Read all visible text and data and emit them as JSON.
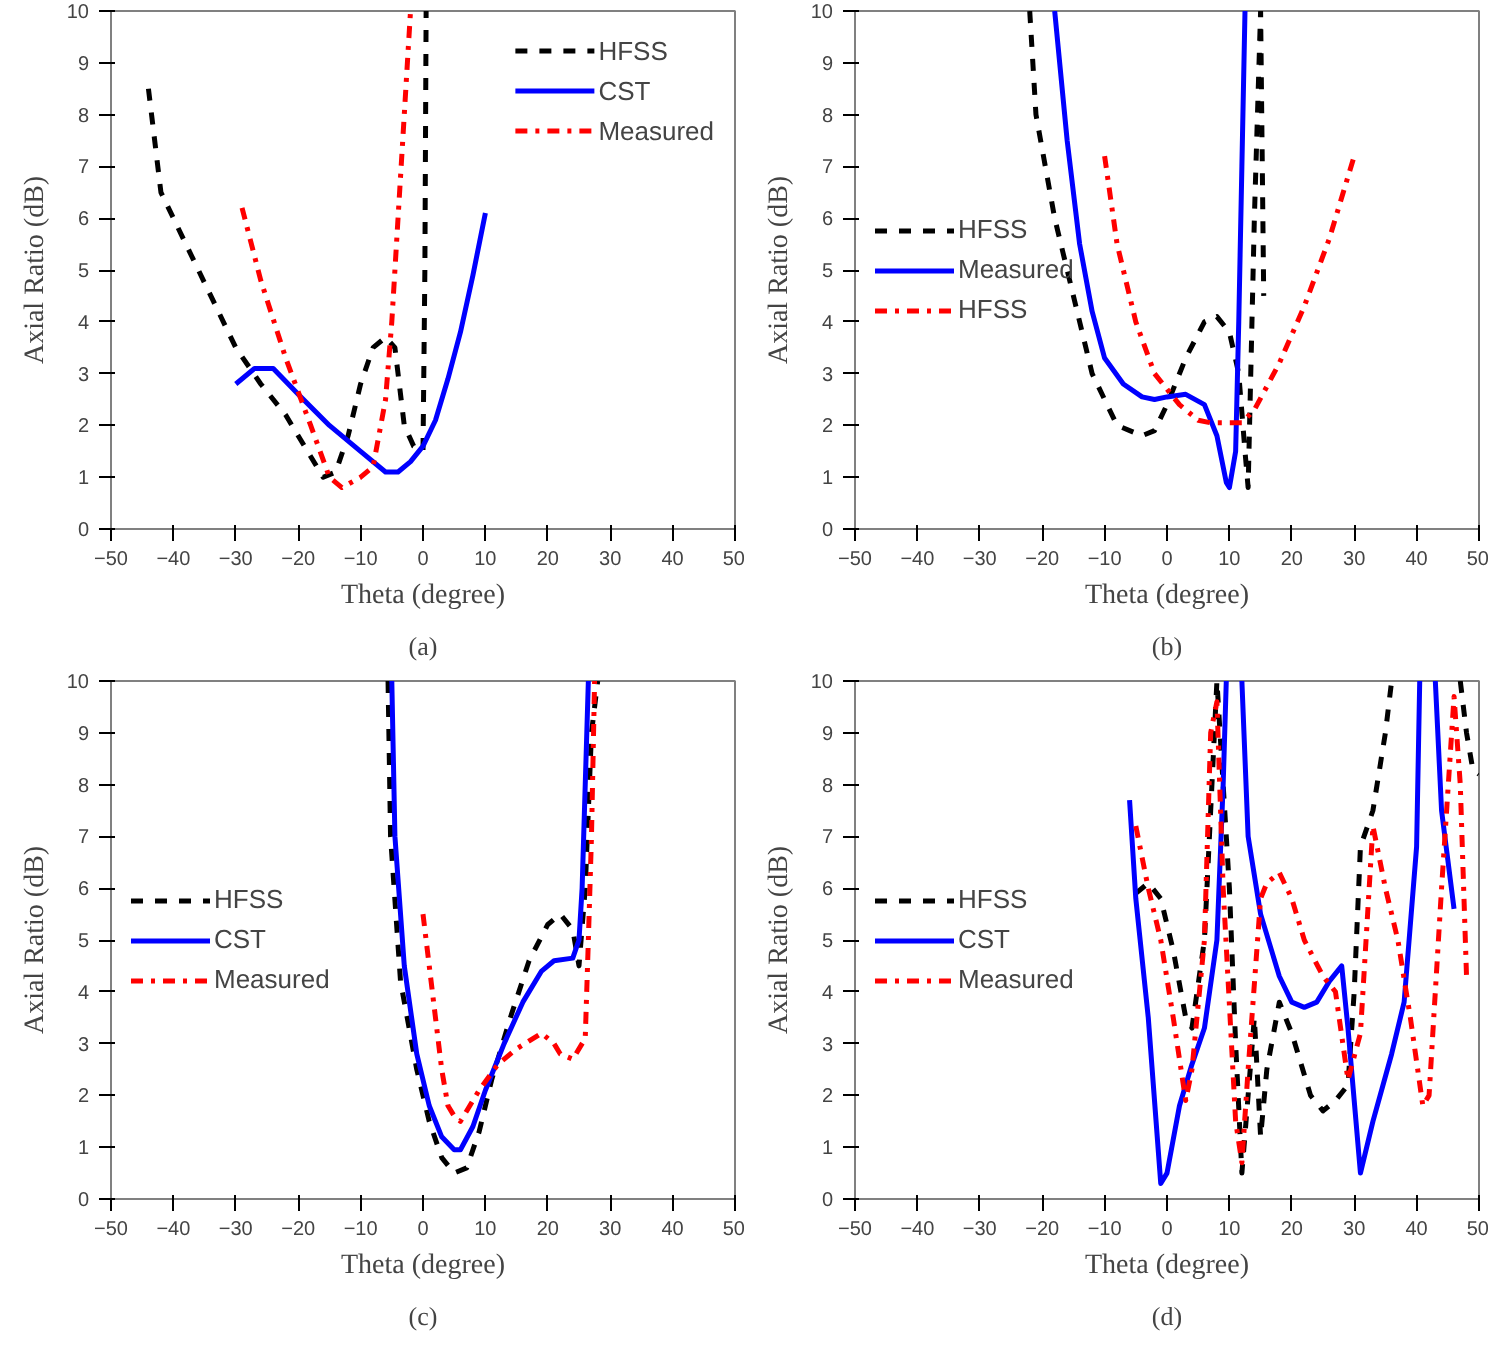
{
  "chart_data": [
    {
      "type": "line",
      "title": "(a)",
      "xlabel": "Theta (degree)",
      "ylabel": "Axial Ratio (dB)",
      "xlim": [
        -50,
        50
      ],
      "ylim": [
        0,
        10
      ],
      "xticks": [
        -50,
        -40,
        -30,
        -20,
        -10,
        0,
        10,
        20,
        30,
        40,
        50
      ],
      "yticks": [
        0,
        1,
        2,
        3,
        4,
        5,
        6,
        7,
        8,
        9,
        10
      ],
      "grid": false,
      "legend": "top right",
      "series": [
        {
          "name": "HFSS",
          "color": "#000000",
          "line_style": "dashed",
          "x": [
            -44,
            -42,
            -38,
            -34,
            -30,
            -26,
            -22,
            -18,
            -16,
            -14,
            -12,
            -10,
            -8,
            -6,
            -4.5,
            -3,
            -1.5,
            0,
            0.3,
            0.5
          ],
          "values": [
            8.5,
            6.5,
            5.5,
            4.5,
            3.5,
            2.8,
            2.2,
            1.4,
            1.0,
            1.1,
            1.8,
            2.8,
            3.5,
            3.7,
            3.5,
            2.0,
            1.6,
            1.5,
            5,
            10
          ]
        },
        {
          "name": "CST",
          "color": "#0000ff",
          "line_style": "solid",
          "x": [
            -30,
            -27,
            -24,
            -20,
            -15,
            -10,
            -6,
            -4,
            -2,
            0,
            2,
            4,
            6,
            8,
            10
          ],
          "values": [
            2.8,
            3.1,
            3.1,
            2.6,
            2.0,
            1.5,
            1.1,
            1.1,
            1.3,
            1.6,
            2.1,
            2.9,
            3.8,
            4.9,
            6.1
          ]
        },
        {
          "name": "Measured",
          "color": "#ff0000",
          "line_style": "dashdot",
          "x": [
            -29,
            -26,
            -22,
            -18,
            -15,
            -13,
            -10,
            -8,
            -6,
            -5,
            -4,
            -3,
            -2
          ],
          "values": [
            6.2,
            4.8,
            3.3,
            2.0,
            1.0,
            0.8,
            1.0,
            1.2,
            2.5,
            4.0,
            6.0,
            8.0,
            10
          ]
        }
      ]
    },
    {
      "type": "line",
      "title": "(b)",
      "xlabel": "Theta (degree)",
      "ylabel": "Axial Ratio (dB)",
      "xlim": [
        -50,
        50
      ],
      "ylim": [
        0,
        10
      ],
      "xticks": [
        -50,
        -40,
        -30,
        -20,
        -10,
        0,
        10,
        20,
        30,
        40,
        50
      ],
      "yticks": [
        0,
        1,
        2,
        3,
        4,
        5,
        6,
        7,
        8,
        9,
        10
      ],
      "grid": false,
      "legend": "left",
      "series": [
        {
          "name": "HFSS",
          "color": "#000000",
          "line_style": "dashed",
          "x": [
            -22,
            -21,
            -18,
            -15,
            -12,
            -8,
            -4,
            -2,
            0,
            3,
            6,
            8,
            10,
            11.5,
            12.5,
            13,
            14,
            15,
            15.5
          ],
          "values": [
            10,
            8,
            6,
            4.5,
            3.0,
            2.0,
            1.8,
            1.9,
            2.4,
            3.3,
            4.0,
            4.1,
            3.8,
            3.0,
            1.5,
            0.8,
            6,
            10,
            4.5
          ]
        },
        {
          "name": "Measured",
          "color": "#0000ff",
          "line_style": "solid",
          "x": [
            -18,
            -16,
            -14,
            -12,
            -10,
            -7,
            -4,
            -2,
            0,
            3,
            6,
            8,
            9.5,
            10,
            11,
            11.5,
            12,
            12.5
          ],
          "values": [
            10,
            7.5,
            5.5,
            4.2,
            3.3,
            2.8,
            2.55,
            2.5,
            2.55,
            2.6,
            2.4,
            1.8,
            0.9,
            0.8,
            1.5,
            4,
            7,
            10
          ]
        },
        {
          "name": "HFSS",
          "color": "#ff0000",
          "line_style": "dashdot",
          "x": [
            -10,
            -8,
            -5,
            -2,
            2,
            5,
            7,
            12,
            14,
            18,
            22,
            26,
            30
          ],
          "values": [
            7.2,
            5.5,
            4.0,
            3.0,
            2.4,
            2.1,
            2.05,
            2.05,
            2.3,
            3.2,
            4.3,
            5.6,
            7.2
          ]
        }
      ]
    },
    {
      "type": "line",
      "title": "(c)",
      "xlabel": "Theta (degree)",
      "ylabel": "Axial Ratio (dB)",
      "xlim": [
        -50,
        50
      ],
      "ylim": [
        0,
        10
      ],
      "xticks": [
        -50,
        -40,
        -30,
        -20,
        -10,
        0,
        10,
        20,
        30,
        40,
        50
      ],
      "yticks": [
        0,
        1,
        2,
        3,
        4,
        5,
        6,
        7,
        8,
        9,
        10
      ],
      "grid": false,
      "legend": "left",
      "series": [
        {
          "name": "HFSS",
          "color": "#000000",
          "line_style": "dashed",
          "x": [
            -5.6,
            -5.2,
            -3.6,
            -1,
            1,
            3,
            5,
            7,
            9,
            11,
            14,
            17,
            20,
            22,
            24,
            25,
            26,
            27,
            28
          ],
          "values": [
            10,
            7,
            4.2,
            2.5,
            1.5,
            0.8,
            0.5,
            0.6,
            1.3,
            2.3,
            3.5,
            4.6,
            5.3,
            5.5,
            5.2,
            4.5,
            6,
            9,
            10
          ]
        },
        {
          "name": "CST",
          "color": "#0000ff",
          "line_style": "solid",
          "x": [
            -5,
            -4.5,
            -3,
            -1,
            1,
            3,
            5,
            6,
            8,
            10,
            13,
            16,
            19,
            21,
            24,
            25,
            25.5,
            26,
            26.5
          ],
          "values": [
            10,
            7,
            4.5,
            2.8,
            1.8,
            1.2,
            0.95,
            0.95,
            1.4,
            2.1,
            3.0,
            3.8,
            4.4,
            4.6,
            4.65,
            5.0,
            6,
            8,
            10
          ]
        },
        {
          "name": "Measured",
          "color": "#ff0000",
          "line_style": "dashdot",
          "x": [
            0,
            1,
            2,
            3,
            4,
            5,
            6,
            7,
            9,
            12,
            15,
            19,
            21,
            22,
            24,
            26,
            26.5,
            27,
            27.5
          ],
          "values": [
            5.5,
            4.5,
            3.5,
            2.5,
            1.8,
            1.6,
            1.5,
            1.7,
            2.1,
            2.6,
            2.9,
            3.2,
            3.0,
            2.8,
            2.7,
            3.1,
            5,
            7,
            10
          ]
        }
      ]
    },
    {
      "type": "line",
      "title": "(d)",
      "xlabel": "Theta (degree)",
      "ylabel": "Axial Ratio (dB)",
      "xlim": [
        -50,
        50
      ],
      "ylim": [
        0,
        10
      ],
      "xticks": [
        -50,
        -40,
        -30,
        -20,
        -10,
        0,
        10,
        20,
        30,
        40,
        50
      ],
      "yticks": [
        0,
        1,
        2,
        3,
        4,
        5,
        6,
        7,
        8,
        9,
        10
      ],
      "grid": false,
      "legend": "left",
      "series": [
        {
          "name": "HFSS",
          "color": "#000000",
          "line_style": "dashed",
          "x": [
            -5,
            -3,
            -1,
            1,
            3,
            4,
            6,
            7,
            8,
            9,
            10,
            11,
            12,
            13,
            14,
            15,
            16,
            18,
            20,
            23,
            25,
            27,
            29,
            30,
            31,
            33,
            35,
            36,
            41,
            47,
            48,
            49,
            50
          ],
          "values": [
            5.9,
            6.1,
            5.8,
            4.8,
            3.5,
            3.3,
            5.0,
            7.5,
            10,
            8,
            6,
            3,
            0.5,
            2,
            3.5,
            1.2,
            2.5,
            3.8,
            3.2,
            2.0,
            1.7,
            1.9,
            2.2,
            4,
            6.8,
            7.5,
            9,
            10,
            null,
            10,
            9,
            8.3,
            8.2
          ]
        },
        {
          "name": "CST",
          "color": "#0000ff",
          "line_style": "solid",
          "x": [
            -6,
            -5,
            -3,
            -1,
            0,
            2,
            4,
            6,
            8,
            9,
            9.5,
            11,
            12,
            13,
            15,
            18,
            20,
            22,
            24,
            26,
            28,
            29,
            31,
            33,
            36,
            38,
            40,
            40.5,
            42,
            43,
            44,
            46
          ],
          "values": [
            7.7,
            5.8,
            3.5,
            0.3,
            0.5,
            1.8,
            2.6,
            3.3,
            5,
            8,
            10,
            null,
            10,
            7,
            5.5,
            4.3,
            3.8,
            3.7,
            3.8,
            4.2,
            4.5,
            3.3,
            0.5,
            1.5,
            2.8,
            3.8,
            6.8,
            10,
            null,
            10,
            7.5,
            5.6
          ]
        },
        {
          "name": "Measured",
          "color": "#ff0000",
          "line_style": "dashdot",
          "x": [
            -5,
            -3,
            -1,
            1,
            3,
            4,
            6,
            7,
            8,
            9,
            11,
            12,
            13,
            15,
            16,
            18,
            20,
            22,
            25,
            27,
            29,
            31,
            33,
            35,
            37,
            39,
            41,
            42,
            44,
            46,
            47,
            48
          ],
          "values": [
            7.2,
            6.0,
            5.0,
            3.5,
            1.9,
            2.5,
            5,
            9,
            9.6,
            6,
            1.5,
            0.7,
            2.5,
            5.8,
            6.1,
            6.3,
            5.8,
            5.0,
            4.3,
            4.0,
            2.3,
            3.2,
            7.2,
            6.0,
            5,
            3.5,
            1.8,
            2.0,
            6,
            9.7,
            8,
            4.3
          ]
        }
      ]
    }
  ]
}
